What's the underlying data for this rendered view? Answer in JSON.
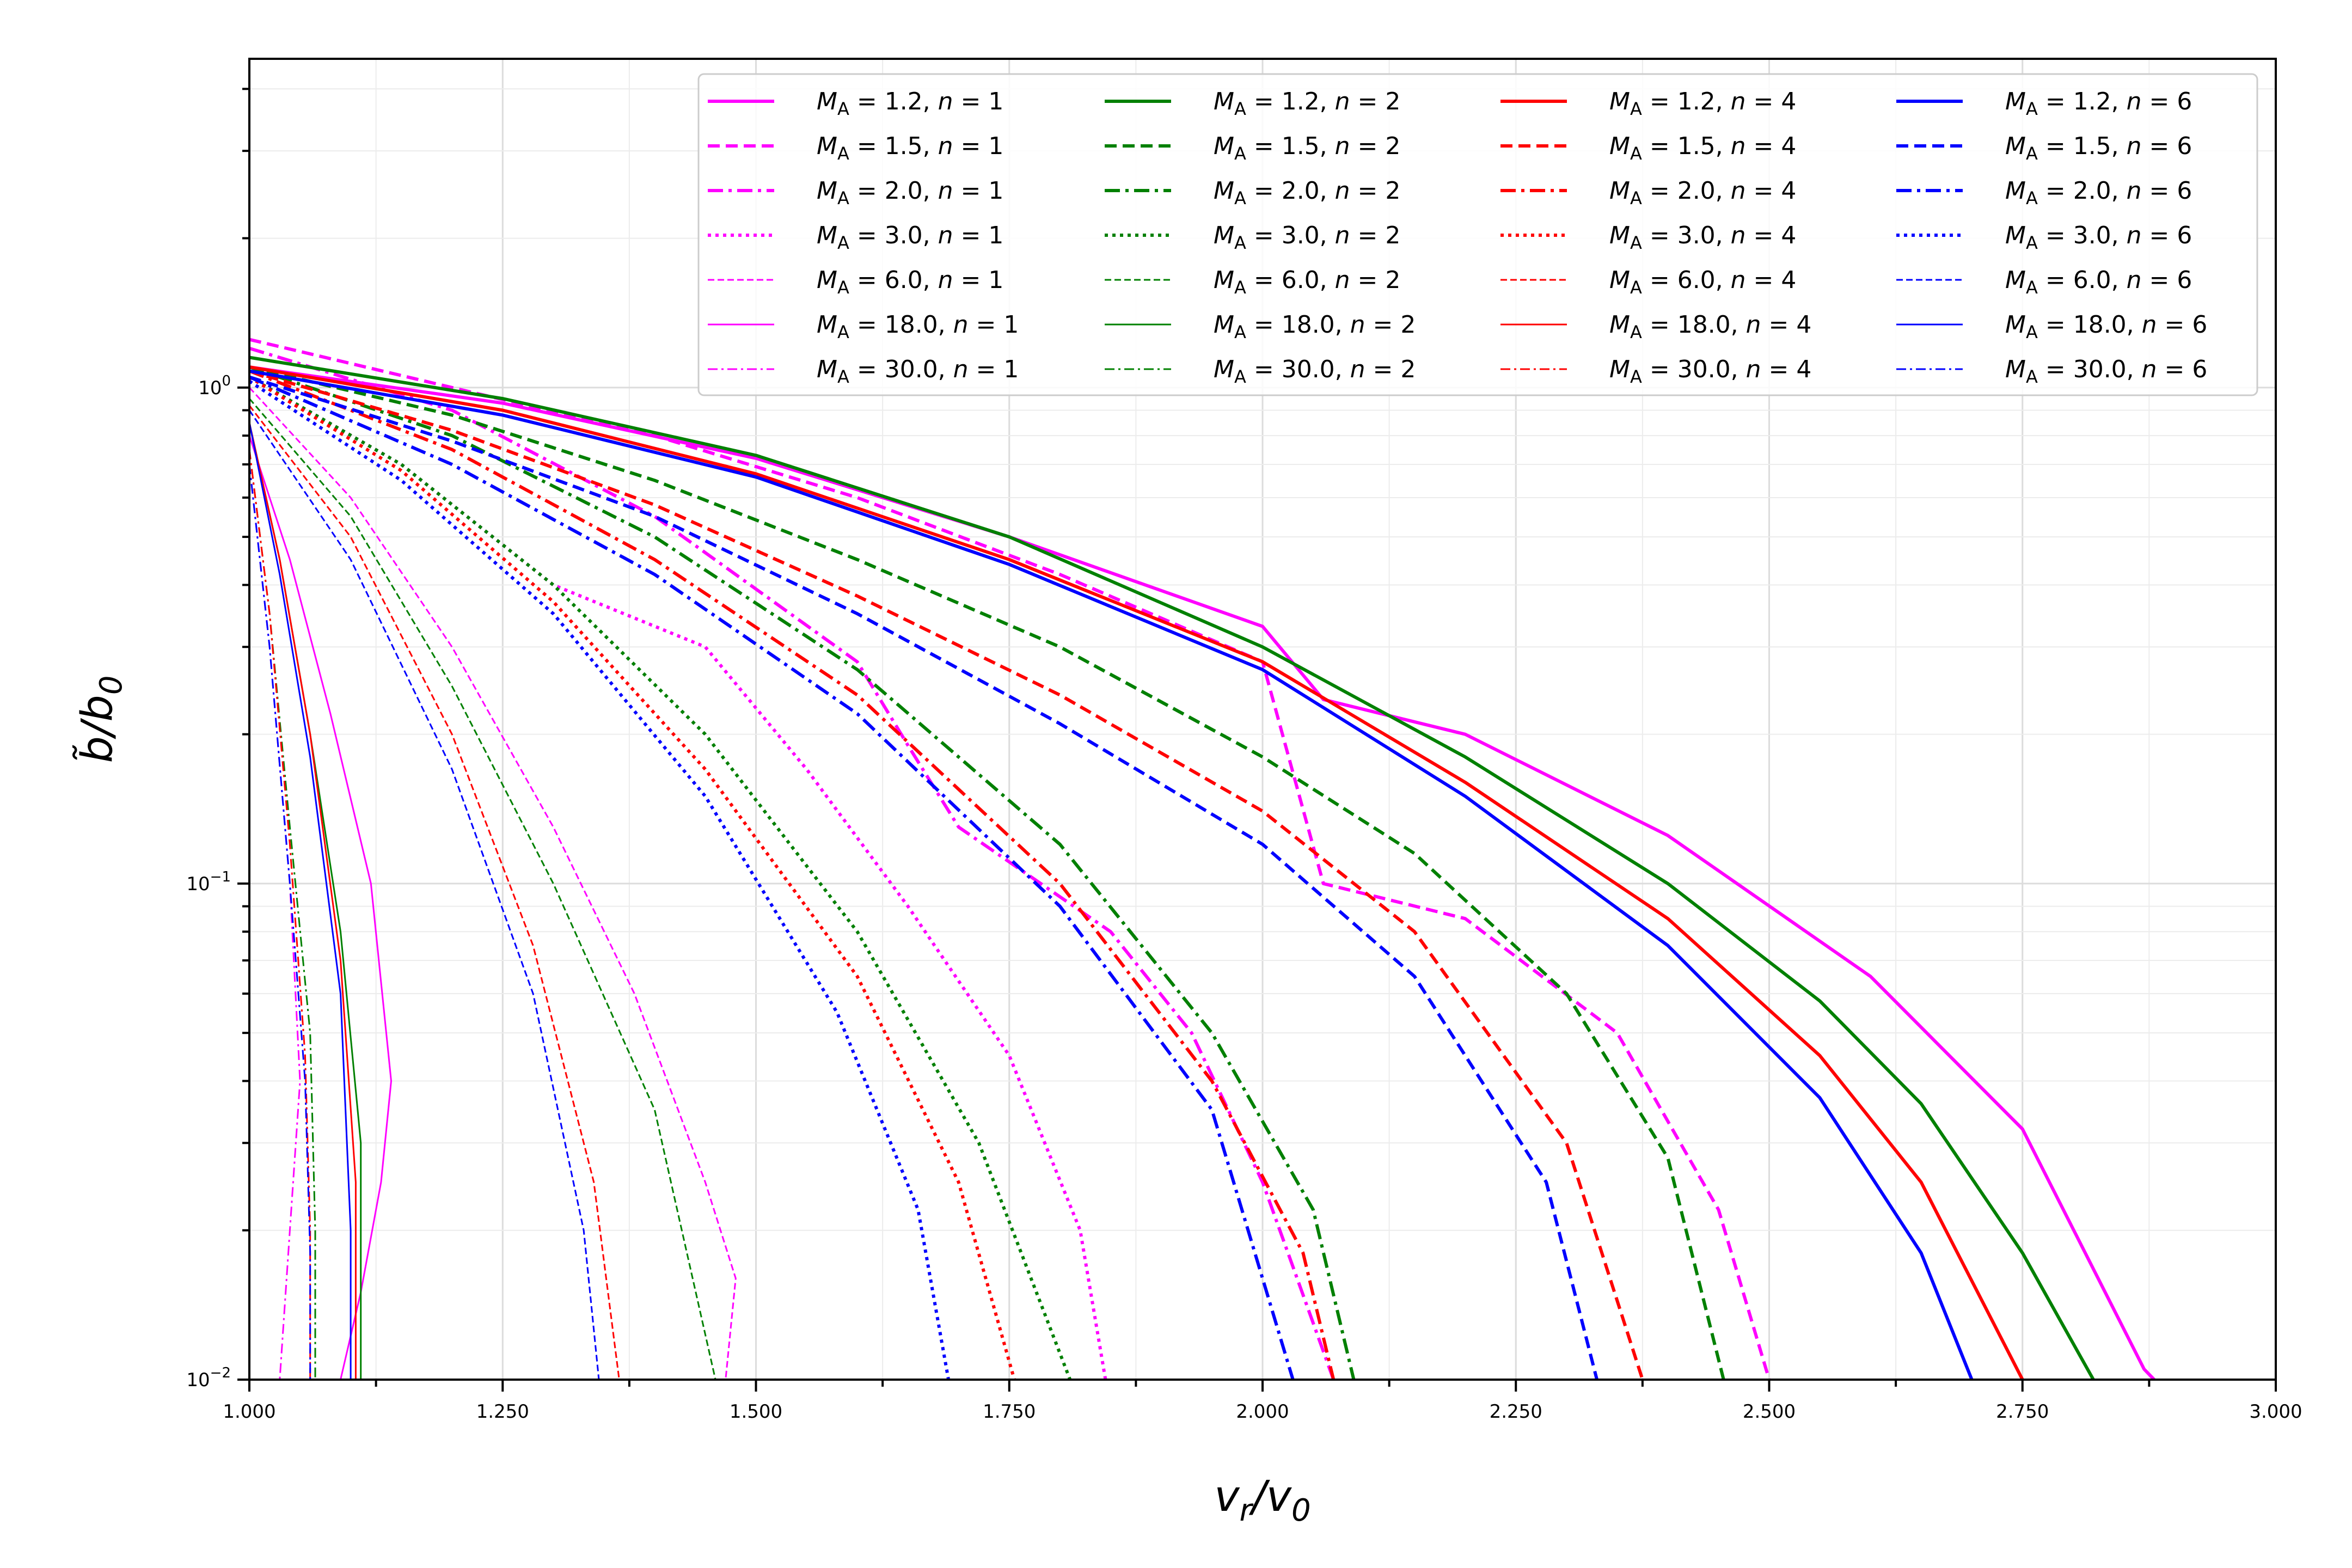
{
  "chart_data": {
    "type": "line",
    "title": "",
    "xlabel": "v_r/v_0",
    "ylabel": "b̃/b_0",
    "xscale": "linear",
    "yscale": "log",
    "xlim": [
      1.0,
      3.0
    ],
    "ylim": [
      0.01,
      4.6
    ],
    "grid": true,
    "legend_position": "top-right",
    "legend_columns": 4,
    "xticks": [
      1.0,
      1.25,
      1.5,
      1.75,
      2.0,
      2.25,
      2.5,
      2.75,
      3.0
    ],
    "xtick_labels": [
      "1.000",
      "1.250",
      "1.500",
      "1.750",
      "2.000",
      "2.250",
      "2.500",
      "2.750",
      "3.000"
    ],
    "ytick_labels": [
      {
        "base": "10",
        "exp": "−2",
        "value": 0.01
      },
      {
        "base": "10",
        "exp": "−1",
        "value": 0.1
      },
      {
        "base": "10",
        "exp": "0",
        "value": 1
      }
    ],
    "colors": {
      "n1": "#ff00ff",
      "n2": "#008000",
      "n4": "#ff0000",
      "n6": "#0000ff"
    },
    "series": [
      {
        "name": "M_A = 1.2, n = 1",
        "M": "1.2",
        "n": "1",
        "style": "solid",
        "color": "#ff00ff",
        "x": [
          1.0,
          1.25,
          1.5,
          1.75,
          2.0,
          2.06,
          2.2,
          2.4,
          2.6,
          2.75,
          2.87,
          2.88
        ],
        "y": [
          1.1,
          0.93,
          0.72,
          0.5,
          0.33,
          0.235,
          0.2,
          0.125,
          0.065,
          0.032,
          0.0105,
          0.01
        ]
      },
      {
        "name": "M_A = 1.5, n = 1",
        "M": "1.5",
        "n": "1",
        "style": "dashed",
        "color": "#ff00ff",
        "x": [
          1.0,
          1.2,
          1.4,
          1.6,
          1.8,
          2.0,
          2.06,
          2.2,
          2.35,
          2.45,
          2.5
        ],
        "y": [
          1.25,
          1.0,
          0.8,
          0.6,
          0.42,
          0.28,
          0.1,
          0.085,
          0.05,
          0.022,
          0.01
        ]
      },
      {
        "name": "M_A = 2.0, n = 1",
        "M": "2.0",
        "n": "1",
        "style": "dashdot",
        "color": "#ff00ff",
        "x": [
          1.0,
          1.2,
          1.4,
          1.6,
          1.65,
          1.7,
          1.85,
          1.93,
          2.0,
          2.07
        ],
        "y": [
          1.2,
          0.9,
          0.55,
          0.28,
          0.19,
          0.13,
          0.08,
          0.05,
          0.025,
          0.01
        ]
      },
      {
        "name": "M_A = 3.0, n = 1",
        "M": "3.0",
        "n": "1",
        "style": "dotted",
        "color": "#ff00ff",
        "x": [
          1.0,
          1.15,
          1.3,
          1.45,
          1.55,
          1.65,
          1.75,
          1.82,
          1.845
        ],
        "y": [
          1.05,
          0.7,
          0.4,
          0.3,
          0.17,
          0.09,
          0.045,
          0.02,
          0.01
        ]
      },
      {
        "name": "M_A = 6.0, n = 1",
        "M": "6.0",
        "n": "1",
        "style": "dashed-thin",
        "color": "#ff00ff",
        "x": [
          1.0,
          1.1,
          1.2,
          1.3,
          1.38,
          1.45,
          1.48,
          1.47
        ],
        "y": [
          1.0,
          0.6,
          0.3,
          0.13,
          0.06,
          0.025,
          0.016,
          0.01
        ]
      },
      {
        "name": "M_A = 18.0, n = 1",
        "M": "18.0",
        "n": "1",
        "style": "solid-thin",
        "color": "#ff00ff",
        "x": [
          1.0,
          1.04,
          1.08,
          1.12,
          1.14,
          1.13,
          1.11,
          1.09
        ],
        "y": [
          0.8,
          0.45,
          0.22,
          0.1,
          0.04,
          0.025,
          0.015,
          0.01
        ]
      },
      {
        "name": "M_A = 30.0, n = 1",
        "M": "30.0",
        "n": "1",
        "style": "dashdot-thin",
        "color": "#ff00ff",
        "x": [
          1.0,
          1.02,
          1.04,
          1.05,
          1.04,
          1.03
        ],
        "y": [
          0.7,
          0.3,
          0.1,
          0.04,
          0.02,
          0.01
        ]
      },
      {
        "name": "M_A = 1.2, n = 2",
        "M": "1.2",
        "n": "2",
        "style": "solid",
        "color": "#008000",
        "x": [
          1.0,
          1.25,
          1.5,
          1.75,
          2.0,
          2.2,
          2.4,
          2.55,
          2.65,
          2.75,
          2.82
        ],
        "y": [
          1.15,
          0.95,
          0.73,
          0.5,
          0.3,
          0.18,
          0.1,
          0.058,
          0.036,
          0.018,
          0.01
        ]
      },
      {
        "name": "M_A = 1.5, n = 2",
        "M": "1.5",
        "n": "2",
        "style": "dashed",
        "color": "#008000",
        "x": [
          1.0,
          1.2,
          1.4,
          1.6,
          1.8,
          2.0,
          2.15,
          2.3,
          2.4,
          2.455
        ],
        "y": [
          1.1,
          0.88,
          0.65,
          0.45,
          0.3,
          0.18,
          0.115,
          0.06,
          0.028,
          0.01
        ]
      },
      {
        "name": "M_A = 2.0, n = 2",
        "M": "2.0",
        "n": "2",
        "style": "dashdot",
        "color": "#008000",
        "x": [
          1.0,
          1.2,
          1.4,
          1.6,
          1.8,
          1.95,
          2.05,
          2.09
        ],
        "y": [
          1.1,
          0.8,
          0.5,
          0.27,
          0.12,
          0.05,
          0.022,
          0.01
        ]
      },
      {
        "name": "M_A = 3.0, n = 2",
        "M": "3.0",
        "n": "2",
        "style": "dotted",
        "color": "#008000",
        "x": [
          1.0,
          1.15,
          1.3,
          1.45,
          1.6,
          1.72,
          1.81
        ],
        "y": [
          1.05,
          0.7,
          0.4,
          0.2,
          0.08,
          0.03,
          0.01
        ]
      },
      {
        "name": "M_A = 6.0, n = 2",
        "M": "6.0",
        "n": "2",
        "style": "dashed-thin",
        "color": "#008000",
        "x": [
          1.0,
          1.1,
          1.2,
          1.3,
          1.4,
          1.46
        ],
        "y": [
          0.95,
          0.55,
          0.25,
          0.1,
          0.035,
          0.01
        ]
      },
      {
        "name": "M_A = 18.0, n = 2",
        "M": "18.0",
        "n": "2",
        "style": "solid-thin",
        "color": "#008000",
        "x": [
          1.0,
          1.03,
          1.06,
          1.09,
          1.11,
          1.11
        ],
        "y": [
          0.85,
          0.45,
          0.2,
          0.08,
          0.03,
          0.01
        ]
      },
      {
        "name": "M_A = 30.0, n = 2",
        "M": "30.0",
        "n": "2",
        "style": "dashdot-thin",
        "color": "#008000",
        "x": [
          1.0,
          1.02,
          1.04,
          1.06,
          1.065,
          1.065
        ],
        "y": [
          0.75,
          0.35,
          0.13,
          0.05,
          0.02,
          0.01
        ]
      },
      {
        "name": "M_A = 1.2, n = 4",
        "M": "1.2",
        "n": "4",
        "style": "solid",
        "color": "#ff0000",
        "x": [
          1.0,
          1.25,
          1.5,
          1.75,
          2.0,
          2.2,
          2.4,
          2.55,
          2.65,
          2.75
        ],
        "y": [
          1.1,
          0.9,
          0.67,
          0.45,
          0.28,
          0.16,
          0.085,
          0.045,
          0.025,
          0.01
        ]
      },
      {
        "name": "M_A = 1.5, n = 4",
        "M": "1.5",
        "n": "4",
        "style": "dashed",
        "color": "#ff0000",
        "x": [
          1.0,
          1.2,
          1.4,
          1.6,
          1.8,
          2.0,
          2.15,
          2.3,
          2.375
        ],
        "y": [
          1.08,
          0.82,
          0.58,
          0.38,
          0.24,
          0.14,
          0.08,
          0.03,
          0.01
        ]
      },
      {
        "name": "M_A = 2.0, n = 4",
        "M": "2.0",
        "n": "4",
        "style": "dashdot",
        "color": "#ff0000",
        "x": [
          1.0,
          1.2,
          1.4,
          1.6,
          1.8,
          1.95,
          2.04,
          2.07
        ],
        "y": [
          1.08,
          0.75,
          0.45,
          0.24,
          0.1,
          0.04,
          0.018,
          0.01
        ]
      },
      {
        "name": "M_A = 3.0, n = 4",
        "M": "3.0",
        "n": "4",
        "style": "dotted",
        "color": "#ff0000",
        "x": [
          1.0,
          1.15,
          1.3,
          1.45,
          1.6,
          1.7,
          1.755
        ],
        "y": [
          1.05,
          0.68,
          0.37,
          0.17,
          0.065,
          0.025,
          0.01
        ]
      },
      {
        "name": "M_A = 6.0, n = 4",
        "M": "6.0",
        "n": "4",
        "style": "dashed-thin",
        "color": "#ff0000",
        "x": [
          1.0,
          1.1,
          1.2,
          1.28,
          1.34,
          1.365
        ],
        "y": [
          0.92,
          0.5,
          0.2,
          0.075,
          0.025,
          0.01
        ]
      },
      {
        "name": "M_A = 18.0, n = 4",
        "M": "18.0",
        "n": "4",
        "style": "solid-thin",
        "color": "#ff0000",
        "x": [
          1.0,
          1.03,
          1.06,
          1.09,
          1.105,
          1.105
        ],
        "y": [
          0.85,
          0.45,
          0.2,
          0.07,
          0.025,
          0.01
        ]
      },
      {
        "name": "M_A = 30.0, n = 4",
        "M": "30.0",
        "n": "4",
        "style": "dashdot-thin",
        "color": "#ff0000",
        "x": [
          1.0,
          1.02,
          1.04,
          1.055,
          1.06,
          1.06
        ],
        "y": [
          0.75,
          0.35,
          0.12,
          0.045,
          0.02,
          0.01
        ]
      },
      {
        "name": "M_A = 1.2, n = 6",
        "M": "1.2",
        "n": "6",
        "style": "solid",
        "color": "#0000ff",
        "x": [
          1.0,
          1.25,
          1.5,
          1.75,
          2.0,
          2.2,
          2.4,
          2.55,
          2.65,
          2.7
        ],
        "y": [
          1.08,
          0.88,
          0.66,
          0.44,
          0.27,
          0.15,
          0.075,
          0.037,
          0.018,
          0.01
        ]
      },
      {
        "name": "M_A = 1.5, n = 6",
        "M": "1.5",
        "n": "6",
        "style": "dashed",
        "color": "#0000ff",
        "x": [
          1.0,
          1.2,
          1.4,
          1.6,
          1.8,
          2.0,
          2.15,
          2.28,
          2.33
        ],
        "y": [
          1.05,
          0.78,
          0.55,
          0.35,
          0.21,
          0.12,
          0.065,
          0.025,
          0.01
        ]
      },
      {
        "name": "M_A = 2.0, n = 6",
        "M": "2.0",
        "n": "6",
        "style": "dashdot",
        "color": "#0000ff",
        "x": [
          1.0,
          1.2,
          1.4,
          1.6,
          1.8,
          1.95,
          2.03
        ],
        "y": [
          1.05,
          0.7,
          0.42,
          0.22,
          0.09,
          0.035,
          0.01
        ]
      },
      {
        "name": "M_A = 3.0, n = 6",
        "M": "3.0",
        "n": "6",
        "style": "dotted",
        "color": "#0000ff",
        "x": [
          1.0,
          1.15,
          1.3,
          1.45,
          1.58,
          1.66,
          1.69
        ],
        "y": [
          1.03,
          0.65,
          0.35,
          0.15,
          0.055,
          0.022,
          0.01
        ]
      },
      {
        "name": "M_A = 6.0, n = 6",
        "M": "6.0",
        "n": "6",
        "style": "dashed-thin",
        "color": "#0000ff",
        "x": [
          1.0,
          1.1,
          1.2,
          1.28,
          1.33,
          1.345
        ],
        "y": [
          0.9,
          0.45,
          0.17,
          0.06,
          0.02,
          0.01
        ]
      },
      {
        "name": "M_A = 18.0, n = 6",
        "M": "18.0",
        "n": "6",
        "style": "solid-thin",
        "color": "#0000ff",
        "x": [
          1.0,
          1.03,
          1.06,
          1.09,
          1.1,
          1.1
        ],
        "y": [
          0.85,
          0.42,
          0.18,
          0.06,
          0.02,
          0.01
        ]
      },
      {
        "name": "M_A = 30.0, n = 6",
        "M": "30.0",
        "n": "6",
        "style": "dashdot-thin",
        "color": "#0000ff",
        "x": [
          1.0,
          1.02,
          1.04,
          1.055,
          1.06,
          1.06
        ],
        "y": [
          0.7,
          0.3,
          0.1,
          0.04,
          0.018,
          0.01
        ]
      }
    ]
  }
}
